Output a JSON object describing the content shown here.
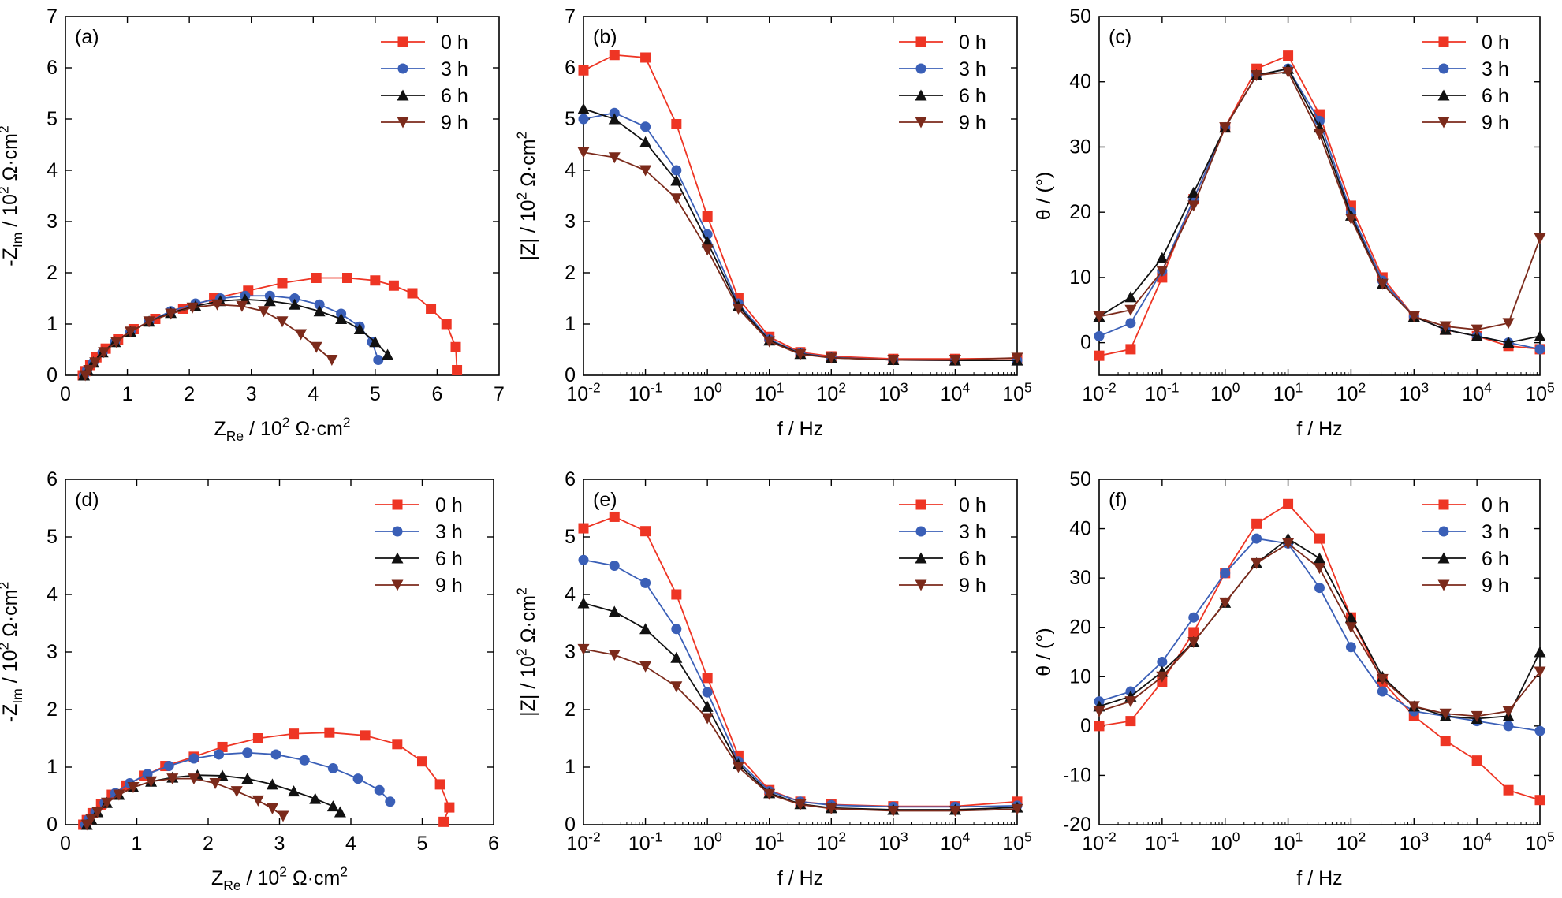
{
  "legend_labels": [
    "0 h",
    "3 h",
    "6 h",
    "9 h"
  ],
  "series_colors": [
    "#ee3524",
    "#3a5fb7",
    "#111111",
    "#7b2a1b"
  ],
  "series_markers": [
    "square",
    "circle",
    "triangle-up",
    "triangle-down"
  ],
  "chart_data": [
    {
      "panel": "(a)",
      "type": "scatter",
      "xlabel": "Z_Re / 10^2 Ω·cm^2",
      "ylabel": "-Z_Im / 10^2 Ω·cm^2",
      "xlim": [
        0,
        7
      ],
      "ylim": [
        0,
        7
      ],
      "xticks": [
        "0",
        "1",
        "2",
        "3",
        "4",
        "5",
        "6",
        "7"
      ],
      "yticks": [
        "0",
        "1",
        "2",
        "3",
        "4",
        "5",
        "6",
        "7"
      ],
      "legend": "top-right",
      "grid": false,
      "series": [
        {
          "name": "0 h",
          "x": [
            0.28,
            0.32,
            0.4,
            0.5,
            0.65,
            0.85,
            1.1,
            1.45,
            1.9,
            2.4,
            2.95,
            3.5,
            4.05,
            4.55,
            5.0,
            5.3,
            5.6,
            5.9,
            6.15,
            6.3,
            6.32
          ],
          "y": [
            0.0,
            0.08,
            0.2,
            0.35,
            0.52,
            0.7,
            0.9,
            1.1,
            1.3,
            1.5,
            1.65,
            1.8,
            1.9,
            1.9,
            1.85,
            1.75,
            1.6,
            1.3,
            1.0,
            0.55,
            0.1
          ]
        },
        {
          "name": "3 h",
          "x": [
            0.3,
            0.35,
            0.45,
            0.6,
            0.8,
            1.05,
            1.35,
            1.7,
            2.1,
            2.5,
            2.9,
            3.3,
            3.7,
            4.1,
            4.45,
            4.75,
            4.95,
            5.05
          ],
          "y": [
            0.0,
            0.1,
            0.25,
            0.45,
            0.65,
            0.85,
            1.05,
            1.25,
            1.4,
            1.5,
            1.55,
            1.55,
            1.5,
            1.38,
            1.2,
            0.95,
            0.65,
            0.3
          ]
        },
        {
          "name": "6 h",
          "x": [
            0.3,
            0.36,
            0.45,
            0.6,
            0.8,
            1.05,
            1.35,
            1.7,
            2.1,
            2.5,
            2.9,
            3.3,
            3.7,
            4.1,
            4.45,
            4.75,
            5.0,
            5.2
          ],
          "y": [
            0.0,
            0.1,
            0.25,
            0.45,
            0.65,
            0.85,
            1.05,
            1.22,
            1.35,
            1.45,
            1.48,
            1.45,
            1.38,
            1.25,
            1.1,
            0.9,
            0.65,
            0.4
          ]
        },
        {
          "name": "9 h",
          "x": [
            0.32,
            0.38,
            0.48,
            0.62,
            0.82,
            1.05,
            1.35,
            1.7,
            2.05,
            2.45,
            2.85,
            3.2,
            3.5,
            3.8,
            4.05,
            4.3
          ],
          "y": [
            0.0,
            0.1,
            0.25,
            0.45,
            0.65,
            0.85,
            1.05,
            1.2,
            1.32,
            1.38,
            1.35,
            1.25,
            1.05,
            0.8,
            0.55,
            0.3
          ]
        }
      ]
    },
    {
      "panel": "(b)",
      "type": "line",
      "xlabel": "f / Hz",
      "ylabel": "|Z| / 10^2 Ω·cm^2",
      "xscale": "log",
      "xlim": [
        0.01,
        100000
      ],
      "ylim": [
        0,
        7
      ],
      "xticks": [
        "10^-2",
        "10^-1",
        "10^0",
        "10^1",
        "10^2",
        "10^3",
        "10^4",
        "10^5"
      ],
      "yticks": [
        "0",
        "1",
        "2",
        "3",
        "4",
        "5",
        "6",
        "7"
      ],
      "legend": "top-right",
      "grid": false,
      "series": [
        {
          "name": "0 h",
          "x": [
            0.01,
            0.0316,
            0.1,
            0.316,
            1,
            3.16,
            10,
            31.6,
            100,
            1000,
            10000,
            100000
          ],
          "y": [
            5.95,
            6.25,
            6.2,
            4.9,
            3.1,
            1.5,
            0.75,
            0.45,
            0.37,
            0.32,
            0.32,
            0.33
          ]
        },
        {
          "name": "3 h",
          "x": [
            0.01,
            0.0316,
            0.1,
            0.316,
            1,
            3.16,
            10,
            31.6,
            100,
            1000,
            10000,
            100000
          ],
          "y": [
            5.0,
            5.12,
            4.85,
            4.0,
            2.75,
            1.4,
            0.7,
            0.43,
            0.35,
            0.3,
            0.29,
            0.29
          ]
        },
        {
          "name": "6 h",
          "x": [
            0.01,
            0.0316,
            0.1,
            0.316,
            1,
            3.16,
            10,
            31.6,
            100,
            1000,
            10000,
            100000
          ],
          "y": [
            5.2,
            5.0,
            4.55,
            3.8,
            2.6,
            1.35,
            0.68,
            0.42,
            0.34,
            0.3,
            0.29,
            0.29
          ]
        },
        {
          "name": "9 h",
          "x": [
            0.01,
            0.0316,
            0.1,
            0.316,
            1,
            3.16,
            10,
            31.6,
            100,
            1000,
            10000,
            100000
          ],
          "y": [
            4.35,
            4.25,
            4.0,
            3.45,
            2.45,
            1.3,
            0.66,
            0.41,
            0.34,
            0.3,
            0.3,
            0.34
          ]
        }
      ]
    },
    {
      "panel": "(c)",
      "type": "line",
      "xlabel": "f / Hz",
      "ylabel": "θ / (°)",
      "xscale": "log",
      "xlim": [
        0.01,
        100000
      ],
      "ylim": [
        -5,
        50
      ],
      "xticks": [
        "10^-2",
        "10^-1",
        "10^0",
        "10^1",
        "10^2",
        "10^3",
        "10^4",
        "10^5"
      ],
      "yticks": [
        "0",
        "10",
        "20",
        "30",
        "40",
        "50"
      ],
      "legend": "top-right",
      "grid": false,
      "series": [
        {
          "name": "0 h",
          "x": [
            0.01,
            0.0316,
            0.1,
            0.316,
            1,
            3.16,
            10,
            31.6,
            100,
            316,
            1000,
            3160,
            10000,
            31600,
            100000
          ],
          "y": [
            -2,
            -1,
            10,
            22,
            33,
            42,
            44,
            35,
            21,
            10,
            4,
            2,
            1,
            -0.5,
            -1
          ]
        },
        {
          "name": "3 h",
          "x": [
            0.01,
            0.0316,
            0.1,
            0.316,
            1,
            3.16,
            10,
            31.6,
            100,
            316,
            1000,
            3160,
            10000,
            31600,
            100000
          ],
          "y": [
            1,
            3,
            11,
            22,
            33,
            41,
            42,
            34,
            20,
            9.5,
            4,
            2,
            1,
            0,
            -1
          ]
        },
        {
          "name": "6 h",
          "x": [
            0.01,
            0.0316,
            0.1,
            0.316,
            1,
            3.16,
            10,
            31.6,
            100,
            316,
            1000,
            3160,
            10000,
            31600,
            100000
          ],
          "y": [
            4,
            7,
            13,
            23,
            33,
            41,
            42,
            33,
            19.5,
            9,
            4,
            2,
            1,
            0,
            1
          ]
        },
        {
          "name": "9 h",
          "x": [
            0.01,
            0.0316,
            0.1,
            0.316,
            1,
            3.16,
            10,
            31.6,
            100,
            316,
            1000,
            3160,
            10000,
            31600,
            100000
          ],
          "y": [
            4,
            5,
            11,
            21,
            33,
            41,
            41.5,
            32,
            19,
            9,
            4,
            2.5,
            2,
            3,
            16
          ]
        }
      ]
    },
    {
      "panel": "(d)",
      "type": "scatter",
      "xlabel": "Z_Re / 10^2 Ω·cm^2",
      "ylabel": "-Z_Im / 10^2 Ω·cm^2",
      "xlim": [
        0,
        6
      ],
      "ylim": [
        0,
        6
      ],
      "xticks": [
        "0",
        "1",
        "2",
        "3",
        "4",
        "5",
        "6"
      ],
      "yticks": [
        "0",
        "1",
        "2",
        "3",
        "4",
        "5",
        "6"
      ],
      "legend": "top-right",
      "grid": false,
      "series": [
        {
          "name": "0 h",
          "x": [
            0.25,
            0.3,
            0.38,
            0.5,
            0.65,
            0.85,
            1.1,
            1.4,
            1.8,
            2.2,
            2.7,
            3.2,
            3.7,
            4.2,
            4.65,
            5.0,
            5.25,
            5.38,
            5.3
          ],
          "y": [
            0.0,
            0.08,
            0.2,
            0.35,
            0.52,
            0.68,
            0.85,
            1.02,
            1.18,
            1.35,
            1.5,
            1.58,
            1.6,
            1.55,
            1.4,
            1.1,
            0.7,
            0.3,
            0.05
          ]
        },
        {
          "name": "3 h",
          "x": [
            0.28,
            0.33,
            0.42,
            0.55,
            0.7,
            0.9,
            1.15,
            1.45,
            1.8,
            2.15,
            2.55,
            2.95,
            3.35,
            3.75,
            4.1,
            4.4,
            4.55
          ],
          "y": [
            0.0,
            0.1,
            0.22,
            0.38,
            0.55,
            0.72,
            0.88,
            1.02,
            1.15,
            1.22,
            1.25,
            1.22,
            1.12,
            0.98,
            0.8,
            0.6,
            0.4
          ]
        },
        {
          "name": "6 h",
          "x": [
            0.3,
            0.36,
            0.45,
            0.58,
            0.75,
            0.95,
            1.2,
            1.5,
            1.85,
            2.2,
            2.55,
            2.9,
            3.2,
            3.5,
            3.75,
            3.85
          ],
          "y": [
            0.0,
            0.1,
            0.22,
            0.38,
            0.52,
            0.65,
            0.75,
            0.82,
            0.86,
            0.85,
            0.8,
            0.7,
            0.58,
            0.45,
            0.32,
            0.22
          ]
        },
        {
          "name": "9 h",
          "x": [
            0.3,
            0.36,
            0.45,
            0.58,
            0.75,
            0.95,
            1.2,
            1.5,
            1.8,
            2.1,
            2.4,
            2.7,
            2.9,
            3.05
          ],
          "y": [
            0.0,
            0.1,
            0.22,
            0.38,
            0.52,
            0.65,
            0.75,
            0.8,
            0.8,
            0.72,
            0.58,
            0.42,
            0.28,
            0.15
          ]
        }
      ]
    },
    {
      "panel": "(e)",
      "type": "line",
      "xlabel": "f / Hz",
      "ylabel": "|Z| / 10^2 Ω·cm^2",
      "xscale": "log",
      "xlim": [
        0.01,
        100000
      ],
      "ylim": [
        0,
        6
      ],
      "xticks": [
        "10^-2",
        "10^-1",
        "10^0",
        "10^1",
        "10^2",
        "10^3",
        "10^4",
        "10^5"
      ],
      "yticks": [
        "0",
        "1",
        "2",
        "3",
        "4",
        "5",
        "6"
      ],
      "legend": "top-right",
      "grid": false,
      "series": [
        {
          "name": "0 h",
          "x": [
            0.01,
            0.0316,
            0.1,
            0.316,
            1,
            3.16,
            10,
            31.6,
            100,
            1000,
            10000,
            100000
          ],
          "y": [
            5.15,
            5.35,
            5.1,
            4.0,
            2.55,
            1.2,
            0.6,
            0.4,
            0.35,
            0.32,
            0.32,
            0.4
          ]
        },
        {
          "name": "3 h",
          "x": [
            0.01,
            0.0316,
            0.1,
            0.316,
            1,
            3.16,
            10,
            31.6,
            100,
            1000,
            10000,
            100000
          ],
          "y": [
            4.6,
            4.5,
            4.2,
            3.4,
            2.3,
            1.1,
            0.58,
            0.4,
            0.34,
            0.31,
            0.31,
            0.33
          ]
        },
        {
          "name": "6 h",
          "x": [
            0.01,
            0.0316,
            0.1,
            0.316,
            1,
            3.16,
            10,
            31.6,
            100,
            1000,
            10000,
            100000
          ],
          "y": [
            3.85,
            3.7,
            3.4,
            2.9,
            2.05,
            1.05,
            0.55,
            0.36,
            0.29,
            0.26,
            0.26,
            0.3
          ]
        },
        {
          "name": "9 h",
          "x": [
            0.01,
            0.0316,
            0.1,
            0.316,
            1,
            3.16,
            10,
            31.6,
            100,
            1000,
            10000,
            100000
          ],
          "y": [
            3.05,
            2.95,
            2.75,
            2.4,
            1.85,
            1.0,
            0.53,
            0.35,
            0.28,
            0.24,
            0.24,
            0.27
          ]
        }
      ]
    },
    {
      "panel": "(f)",
      "type": "line",
      "xlabel": "f / Hz",
      "ylabel": "θ / (°)",
      "xscale": "log",
      "xlim": [
        0.01,
        100000
      ],
      "ylim": [
        -20,
        50
      ],
      "xticks": [
        "10^-2",
        "10^-1",
        "10^0",
        "10^1",
        "10^2",
        "10^3",
        "10^4",
        "10^5"
      ],
      "yticks": [
        "-20",
        "-10",
        "0",
        "10",
        "20",
        "30",
        "40",
        "50"
      ],
      "legend": "top-right",
      "grid": false,
      "series": [
        {
          "name": "0 h",
          "x": [
            0.01,
            0.0316,
            0.1,
            0.316,
            1,
            3.16,
            10,
            31.6,
            100,
            316,
            1000,
            3160,
            10000,
            31600,
            100000
          ],
          "y": [
            0,
            1,
            9,
            19,
            31,
            41,
            45,
            38,
            22,
            9,
            2,
            -3,
            -7,
            -13,
            -15
          ]
        },
        {
          "name": "3 h",
          "x": [
            0.01,
            0.0316,
            0.1,
            0.316,
            1,
            3.16,
            10,
            31.6,
            100,
            316,
            1000,
            3160,
            10000,
            31600,
            100000
          ],
          "y": [
            5,
            7,
            13,
            22,
            31,
            38,
            37,
            28,
            16,
            7,
            3,
            2,
            1,
            0,
            -1
          ]
        },
        {
          "name": "6 h",
          "x": [
            0.01,
            0.0316,
            0.1,
            0.316,
            1,
            3.16,
            10,
            31.6,
            100,
            316,
            1000,
            3160,
            10000,
            31600,
            100000
          ],
          "y": [
            4,
            6,
            11,
            17,
            25,
            33,
            38,
            34,
            22,
            10,
            4,
            2,
            1.5,
            2,
            15
          ]
        },
        {
          "name": "9 h",
          "x": [
            0.01,
            0.0316,
            0.1,
            0.316,
            1,
            3.16,
            10,
            31.6,
            100,
            316,
            1000,
            3160,
            10000,
            31600,
            100000
          ],
          "y": [
            3,
            5,
            10,
            17,
            25,
            33,
            37,
            32,
            20,
            9.5,
            4,
            2.5,
            2,
            3,
            11
          ]
        }
      ]
    }
  ]
}
